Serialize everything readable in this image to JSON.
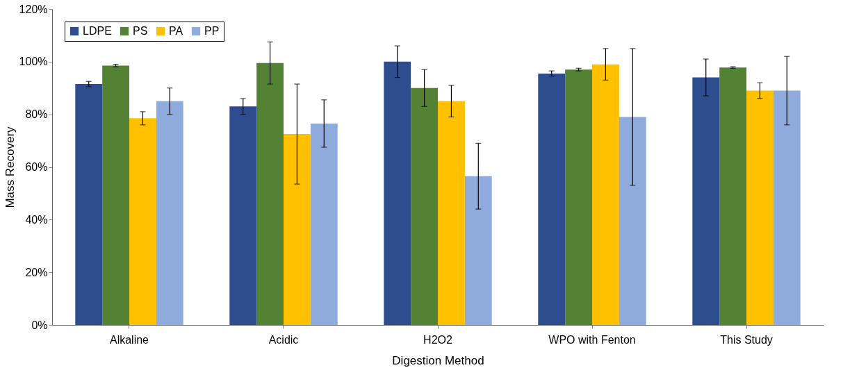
{
  "chart_data": {
    "type": "bar",
    "xlabel": "Digestion Method",
    "ylabel": "Mass Recovery",
    "categories": [
      "Alkaline",
      "Acidic",
      "H2O2",
      "WPO with Fenton",
      "This Study"
    ],
    "series": [
      {
        "name": "LDPE",
        "color": "#2e4d8f",
        "values": [
          91.5,
          83,
          100,
          95.5,
          94
        ],
        "errors": [
          1,
          3,
          6,
          1,
          7
        ]
      },
      {
        "name": "PS",
        "color": "#548235",
        "values": [
          98.5,
          99.5,
          90,
          97,
          97.8
        ],
        "errors": [
          0.5,
          8,
          7,
          0.5,
          0.3
        ]
      },
      {
        "name": "PA",
        "color": "#ffc000",
        "values": [
          78.5,
          72.5,
          85,
          99,
          89
        ],
        "errors": [
          2.5,
          19,
          6,
          6,
          3
        ]
      },
      {
        "name": "PP",
        "color": "#8faadc",
        "values": [
          85,
          76.5,
          56.5,
          79,
          89
        ],
        "errors": [
          5,
          9,
          12.5,
          26,
          13
        ]
      }
    ],
    "ylim": [
      0,
      120
    ],
    "yticks": [
      {
        "value": 0,
        "label": "0%"
      },
      {
        "value": 20,
        "label": "20%"
      },
      {
        "value": 40,
        "label": "40%"
      },
      {
        "value": 60,
        "label": "60%"
      },
      {
        "value": 80,
        "label": "80%"
      },
      {
        "value": 100,
        "label": "100%"
      },
      {
        "value": 120,
        "label": "120%"
      }
    ],
    "grid": false,
    "legend": "top left"
  }
}
